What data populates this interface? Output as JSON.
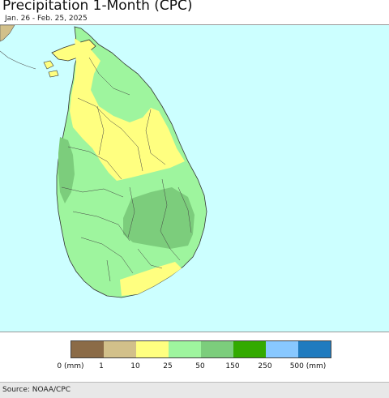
{
  "header": {
    "title": "Precipitation 1-Month (CPC)",
    "date_range": "Jan. 26 - Feb. 25, 2025"
  },
  "legend": {
    "labels": [
      "0 (mm)",
      "1",
      "10",
      "25",
      "50",
      "150",
      "250",
      "500 (mm)"
    ],
    "colors": [
      "#8b6b47",
      "#d2c08a",
      "#ffff80",
      "#9ef59e",
      "#7ccd7c",
      "#33aa00",
      "#88c8ff",
      "#1f7bbf"
    ]
  },
  "map": {
    "ocean_color": "#ccffff",
    "region": "Sri Lanka",
    "mainland_india_color": "#d2c08a"
  },
  "footer": {
    "source": "Source: NOAA/CPC"
  }
}
